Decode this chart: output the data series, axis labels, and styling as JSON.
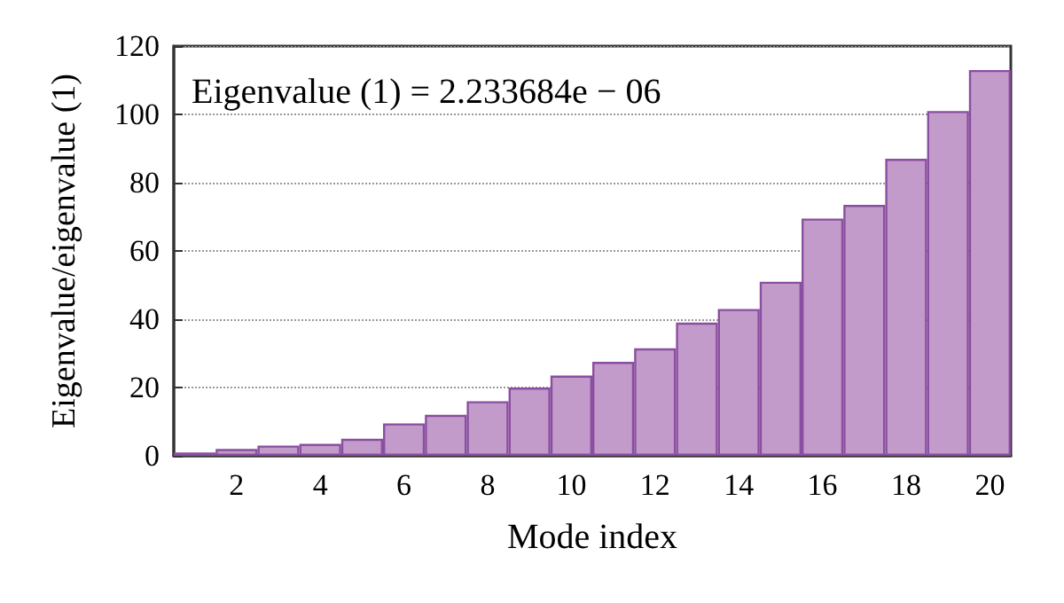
{
  "chart_data": {
    "type": "bar",
    "xlabel": "Mode index",
    "ylabel": "Eigenvalue/eigenvalue (1)",
    "annotations": [
      "Eigenvalue (1) = 2.233684e − 06"
    ],
    "categories": [
      null,
      "2",
      null,
      "4",
      null,
      "6",
      null,
      "8",
      null,
      "10",
      null,
      "12",
      null,
      "14",
      null,
      "16",
      null,
      "18",
      null,
      "20"
    ],
    "values": [
      1,
      2,
      3,
      3.5,
      5,
      9.5,
      12,
      16,
      20,
      23.5,
      27.5,
      31.5,
      39,
      43,
      51,
      69.5,
      73.5,
      87,
      101,
      113
    ],
    "color": "#c39bcb",
    "ylim": [
      0,
      120
    ],
    "yticks": [
      0,
      20,
      40,
      60,
      80,
      100,
      120
    ],
    "grid": "y"
  }
}
